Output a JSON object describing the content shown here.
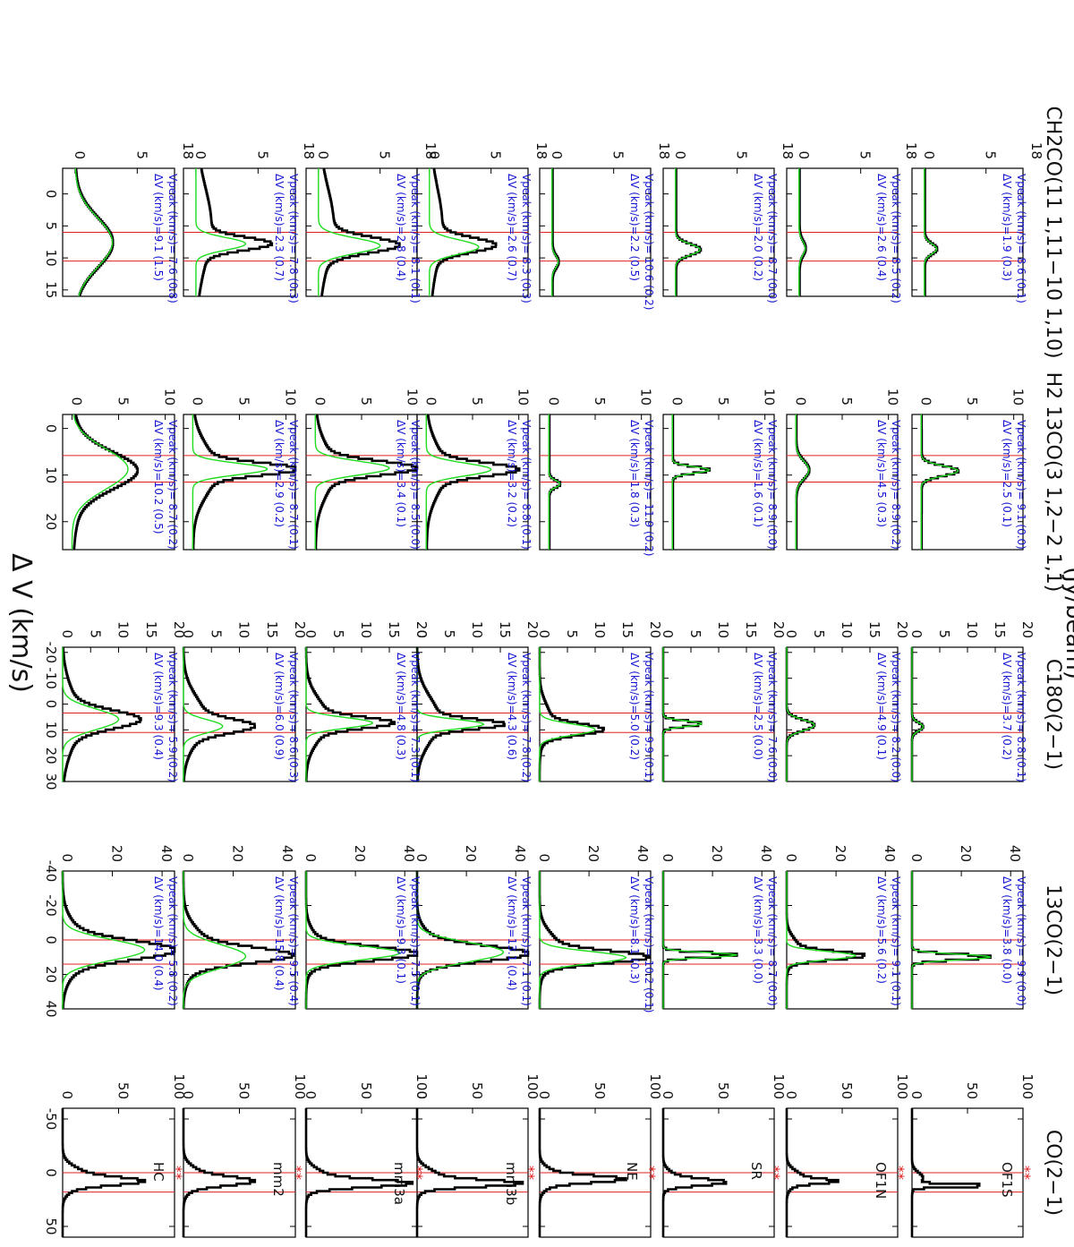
{
  "figure": {
    "ylabel": "(Jy/beam)",
    "xlabel": "Δ V (km/s)",
    "colors": {
      "spectrum": "#000000",
      "fit": "#1fdc1f",
      "ref_line": "#e02020",
      "annotation": "#1414d2",
      "marker": "#e02020"
    }
  },
  "sources": [
    "OF1S",
    "OF1N",
    "SR",
    "NE",
    "mm3b",
    "mm3a",
    "mm2",
    "HC"
  ],
  "chart_data": [
    {
      "type": "line",
      "title": "CO(2−1)",
      "xlim": [
        -60,
        60
      ],
      "xticks": [
        -50,
        0,
        50
      ],
      "ylim": [
        0,
        100
      ],
      "yticks": [
        0,
        50,
        100
      ],
      "ref_lines": [
        0,
        18
      ],
      "star_marker": "**",
      "panels": [
        {
          "source": "OF1S",
          "profile": [
            {
              "c": 12,
              "a": 70,
              "w": 3
            },
            {
              "c": 5,
              "a": 10,
              "w": 12
            }
          ]
        },
        {
          "source": "OF1N",
          "profile": [
            {
              "c": 8,
              "a": 33,
              "w": 5
            },
            {
              "c": 5,
              "a": 15,
              "w": 15
            }
          ]
        },
        {
          "source": "SR",
          "profile": [
            {
              "c": 9,
              "a": 48,
              "w": 7
            },
            {
              "c": 5,
              "a": 12,
              "w": 14
            }
          ]
        },
        {
          "source": "NE",
          "profile": [
            {
              "c": 6,
              "a": 58,
              "w": 7
            },
            {
              "c": 5,
              "a": 20,
              "w": 17
            }
          ]
        },
        {
          "source": "mm3b",
          "profile": [
            {
              "c": 10,
              "a": 78,
              "w": 7
            },
            {
              "c": 5,
              "a": 22,
              "w": 18
            }
          ]
        },
        {
          "source": "mm3a",
          "profile": [
            {
              "c": 10,
              "a": 80,
              "w": 8
            },
            {
              "c": 5,
              "a": 20,
              "w": 18
            }
          ]
        },
        {
          "source": "mm2",
          "profile": [
            {
              "c": 8,
              "a": 45,
              "w": 9
            },
            {
              "c": 5,
              "a": 20,
              "w": 20
            }
          ]
        },
        {
          "source": "HC",
          "profile": [
            {
              "c": 8,
              "a": 50,
              "w": 8
            },
            {
              "c": 5,
              "a": 25,
              "w": 20
            }
          ]
        }
      ]
    },
    {
      "type": "line",
      "title": "13CO(2−1)",
      "xlim": [
        -40,
        40
      ],
      "xticks": [
        -40,
        -20,
        0,
        20,
        40
      ],
      "ylim": [
        0,
        45
      ],
      "yticks": [
        0,
        20,
        40
      ],
      "ref_lines": [
        0,
        14
      ],
      "panels": [
        {
          "source": "OF1S",
          "vpeak": "9.9 (0.0)",
          "dv": "3.8 (0.0)",
          "profile": [
            {
              "c": 9.9,
              "a": 32,
              "w": 3.8
            }
          ],
          "fit": {
            "c": 9.9,
            "a": 32,
            "w": 3.8
          }
        },
        {
          "source": "OF1N",
          "vpeak": "9.1 (0.1)",
          "dv": "5.6 (0.2)",
          "profile": [
            {
              "c": 9.1,
              "a": 28,
              "w": 5.6
            },
            {
              "c": 5,
              "a": 5,
              "w": 14
            }
          ],
          "fit": {
            "c": 9.1,
            "a": 28,
            "w": 5.6
          }
        },
        {
          "source": "SR",
          "vpeak": "8.7 (0.0)",
          "dv": "3.3 (0.0)",
          "profile": [
            {
              "c": 8.7,
              "a": 30,
              "w": 3.3
            }
          ],
          "fit": {
            "c": 8.7,
            "a": 30,
            "w": 3.3
          }
        },
        {
          "source": "NE",
          "vpeak": "10.2 (0.1)",
          "dv": "8.1 (0.3)",
          "profile": [
            {
              "c": 10,
              "a": 38,
              "w": 8
            },
            {
              "c": 5,
              "a": 8,
              "w": 20
            }
          ],
          "fit": {
            "c": 10.2,
            "a": 35,
            "w": 8.1
          }
        },
        {
          "source": "mm3b",
          "vpeak": "7.1 (0.1)",
          "dv": "13.1 (0.4)",
          "profile": [
            {
              "c": 8,
              "a": 38,
              "w": 10
            },
            {
              "c": 5,
              "a": 8,
              "w": 20
            }
          ],
          "fit": {
            "c": 7.1,
            "a": 35,
            "w": 13.1
          }
        },
        {
          "source": "mm3a",
          "vpeak": "7.5 (0.1)",
          "dv": "9.3 (0.1)",
          "profile": [
            {
              "c": 8,
              "a": 40,
              "w": 9
            },
            {
              "c": 5,
              "a": 6,
              "w": 20
            }
          ],
          "fit": {
            "c": 7.5,
            "a": 38,
            "w": 9.3
          }
        },
        {
          "source": "mm2",
          "vpeak": "9.5 (0.4)",
          "dv": "15.8 (0.4)",
          "profile": [
            {
              "c": 9,
              "a": 35,
              "w": 10
            },
            {
              "c": 5,
              "a": 10,
              "w": 25
            }
          ],
          "fit": {
            "c": 9.5,
            "a": 25,
            "w": 15.8
          }
        },
        {
          "source": "HC",
          "vpeak": "5.8 (0.2)",
          "dv": "14.0 (0.4)",
          "profile": [
            {
              "c": 6,
              "a": 36,
              "w": 12
            },
            {
              "c": 5,
              "a": 10,
              "w": 28
            }
          ],
          "fit": {
            "c": 5.8,
            "a": 33,
            "w": 14.0
          }
        }
      ]
    },
    {
      "type": "line",
      "title": "C18O(2−1)",
      "xlim": [
        -22,
        30
      ],
      "xticks": [
        -20,
        -10,
        0,
        10,
        20,
        30
      ],
      "ylim": [
        0,
        20
      ],
      "yticks": [
        0,
        5,
        10,
        15,
        20
      ],
      "ref_lines": [
        3.5,
        11
      ],
      "panels": [
        {
          "source": "OF1S",
          "vpeak": "8.8 (0.1)",
          "dv": "3.7 (0.2)",
          "profile": [
            {
              "c": 8.8,
              "a": 2,
              "w": 3.7
            }
          ],
          "fit": {
            "c": 8.8,
            "a": 2,
            "w": 3.7
          }
        },
        {
          "source": "OF1N",
          "vpeak": "8.2 (0.0)",
          "dv": "4.9 (0.1)",
          "profile": [
            {
              "c": 8.2,
              "a": 5,
              "w": 4.9
            }
          ],
          "fit": {
            "c": 8.2,
            "a": 5,
            "w": 4.9
          }
        },
        {
          "source": "SR",
          "vpeak": "7.6 (0.0)",
          "dv": "2.5 (0.0)",
          "profile": [
            {
              "c": 7.6,
              "a": 7,
              "w": 2.5
            }
          ],
          "fit": {
            "c": 7.6,
            "a": 7,
            "w": 2.5
          }
        },
        {
          "source": "NE",
          "vpeak": "9.9 (0.1)",
          "dv": "5.0 (0.2)",
          "profile": [
            {
              "c": 9.9,
              "a": 10,
              "w": 5
            },
            {
              "c": 6,
              "a": 2,
              "w": 14
            }
          ],
          "fit": {
            "c": 9.9,
            "a": 10,
            "w": 5
          }
        },
        {
          "source": "mm3b",
          "vpeak": "7.8 (0.2)",
          "dv": "4.3 (0.6)",
          "profile": [
            {
              "c": 7.8,
              "a": 12,
              "w": 4.3
            },
            {
              "c": 6,
              "a": 4,
              "w": 20
            }
          ],
          "fit": {
            "c": 7.8,
            "a": 12,
            "w": 4.3
          }
        },
        {
          "source": "mm3a",
          "vpeak": "7.3 (0.1)",
          "dv": "4.8 (0.3)",
          "profile": [
            {
              "c": 7.3,
              "a": 12,
              "w": 4.8
            },
            {
              "c": 6,
              "a": 4,
              "w": 18
            }
          ],
          "fit": {
            "c": 7.3,
            "a": 12,
            "w": 4.8
          }
        },
        {
          "source": "mm2",
          "vpeak": "8.6 (0.3)",
          "dv": "6.0 (0.9)",
          "profile": [
            {
              "c": 8.6,
              "a": 9,
              "w": 6
            },
            {
              "c": 6,
              "a": 4,
              "w": 20
            }
          ],
          "fit": {
            "c": 8.6,
            "a": 7,
            "w": 6
          }
        },
        {
          "source": "HC",
          "vpeak": "5.9 (0.2)",
          "dv": "9.3 (0.4)",
          "profile": [
            {
              "c": 6,
              "a": 11,
              "w": 8
            },
            {
              "c": 6,
              "a": 3,
              "w": 25
            }
          ],
          "fit": {
            "c": 5.9,
            "a": 10,
            "w": 9.3
          }
        }
      ]
    },
    {
      "type": "line",
      "title": "H2 13CO(3 1,2−2 1,1)",
      "xlim": [
        -3,
        26
      ],
      "xticks": [
        0,
        10,
        20
      ],
      "ylim": [
        -1,
        11
      ],
      "yticks": [
        0,
        5,
        10
      ],
      "ref_lines": [
        5.8,
        11.5
      ],
      "panels": [
        {
          "source": "OF1S",
          "vpeak": "9.1 (0.0)",
          "dv": "2.5 (0.1)",
          "profile": [
            {
              "c": 9.1,
              "a": 4,
              "w": 2.5
            }
          ],
          "fit": {
            "c": 9.1,
            "a": 4,
            "w": 2.5
          }
        },
        {
          "source": "OF1N",
          "vpeak": "8.9 (0.2)",
          "dv": "4.5 (0.3)",
          "profile": [
            {
              "c": 8.9,
              "a": 1.4,
              "w": 4.5
            }
          ],
          "fit": {
            "c": 8.9,
            "a": 1.4,
            "w": 4.5
          }
        },
        {
          "source": "SR",
          "vpeak": "8.9 (0.0)",
          "dv": "1.6 (0.1)",
          "profile": [
            {
              "c": 8.9,
              "a": 4,
              "w": 1.6
            }
          ],
          "fit": {
            "c": 8.9,
            "a": 4,
            "w": 1.6
          }
        },
        {
          "source": "NE",
          "vpeak": "11.9 (0.2)",
          "dv": "1.8 (0.3)",
          "profile": [
            {
              "c": 11.9,
              "a": 1.2,
              "w": 1.8
            }
          ],
          "fit": {
            "c": 11.9,
            "a": 1.2,
            "w": 1.8
          }
        },
        {
          "source": "mm3b",
          "vpeak": "8.8 (0.1)",
          "dv": "3.2 (0.2)",
          "profile": [
            {
              "c": 8.8,
              "a": 8,
              "w": 3.2
            },
            {
              "c": 9,
              "a": 2,
              "w": 12
            }
          ],
          "fit": {
            "c": 8.8,
            "a": 7,
            "w": 3.2
          }
        },
        {
          "source": "mm3a",
          "vpeak": "8.5 (0.0)",
          "dv": "3.4 (0.1)",
          "profile": [
            {
              "c": 8.5,
              "a": 9,
              "w": 3.4
            },
            {
              "c": 9,
              "a": 2,
              "w": 12
            }
          ],
          "fit": {
            "c": 8.5,
            "a": 8,
            "w": 3.4
          }
        },
        {
          "source": "mm2",
          "vpeak": "8.7 (0.1)",
          "dv": "2.9 (0.2)",
          "profile": [
            {
              "c": 8.7,
              "a": 9,
              "w": 2.9
            },
            {
              "c": 9,
              "a": 2.5,
              "w": 12
            }
          ],
          "fit": {
            "c": 8.7,
            "a": 8,
            "w": 2.9
          }
        },
        {
          "source": "HC",
          "vpeak": "8.7 (0.2)",
          "dv": "10.2 (0.5)",
          "profile": [
            {
              "c": 9,
              "a": 6,
              "w": 9
            },
            {
              "c": 10,
              "a": 1,
              "w": 20
            }
          ],
          "fit": {
            "c": 8.7,
            "a": 6,
            "w": 10.2
          }
        }
      ]
    },
    {
      "type": "line",
      "title": "CH2CO(11 1,11−10 1,10)",
      "xlim": [
        -4,
        16
      ],
      "xticks": [
        0,
        5,
        10,
        15
      ],
      "ylim": [
        -1,
        8
      ],
      "yticks": [
        0,
        5
      ],
      "top_tick_label": "18",
      "ref_lines": [
        6,
        10.5
      ],
      "panels": [
        {
          "source": "OF1S",
          "vpeak": "8.6 (0.1)",
          "dv": "1.9 (0.3)",
          "profile": [
            {
              "c": 8.6,
              "a": 1,
              "w": 1.9
            }
          ],
          "fit": {
            "c": 8.6,
            "a": 1,
            "w": 1.9
          }
        },
        {
          "source": "OF1N",
          "vpeak": "8.5 (0.2)",
          "dv": "2.6 (0.4)",
          "profile": [
            {
              "c": 8.5,
              "a": 0.5,
              "w": 2.6
            }
          ],
          "fit": {
            "c": 8.5,
            "a": 0.5,
            "w": 2.6
          }
        },
        {
          "source": "SR",
          "vpeak": "8.7 (0.0)",
          "dv": "2.0 (0.2)",
          "profile": [
            {
              "c": 8.7,
              "a": 2,
              "w": 2.0
            }
          ],
          "fit": {
            "c": 8.7,
            "a": 2,
            "w": 2.0
          }
        },
        {
          "source": "NE",
          "vpeak": "10.6 (0.2)",
          "dv": "2.2 (0.5)",
          "profile": [
            {
              "c": 10.6,
              "a": 0.5,
              "w": 2.2
            }
          ],
          "fit": {
            "c": 10.6,
            "a": 0.5,
            "w": 2.2
          }
        },
        {
          "source": "mm3b",
          "vpeak": "8.3 (0.3)",
          "dv": "2.6 (0.7)",
          "profile": [
            {
              "c": 8,
              "a": 4.5,
              "w": 2.6
            },
            {
              "c": 5,
              "a": 1,
              "w": 14
            }
          ],
          "fit": {
            "c": 8.3,
            "a": 4,
            "w": 2.6
          }
        },
        {
          "source": "mm3a",
          "vpeak": "8.1 (0.1)",
          "dv": "2.8 (0.4)",
          "profile": [
            {
              "c": 8,
              "a": 5.5,
              "w": 2.8
            },
            {
              "c": 5,
              "a": 1.2,
              "w": 14
            }
          ],
          "fit": {
            "c": 8.1,
            "a": 5,
            "w": 2.8
          }
        },
        {
          "source": "mm2",
          "vpeak": "7.8 (0.3)",
          "dv": "2.3 (0.7)",
          "profile": [
            {
              "c": 7.8,
              "a": 5,
              "w": 2.3
            },
            {
              "c": 5,
              "a": 1.2,
              "w": 14
            }
          ],
          "fit": {
            "c": 7.8,
            "a": 4,
            "w": 2.3
          }
        },
        {
          "source": "HC",
          "vpeak": "7.6 (0.8)",
          "dv": "9.1 (1.5)",
          "profile": [
            {
              "c": 7.6,
              "a": 3,
              "w": 9.1
            }
          ],
          "fit": {
            "c": 7.6,
            "a": 3,
            "w": 9.1
          }
        }
      ]
    }
  ]
}
